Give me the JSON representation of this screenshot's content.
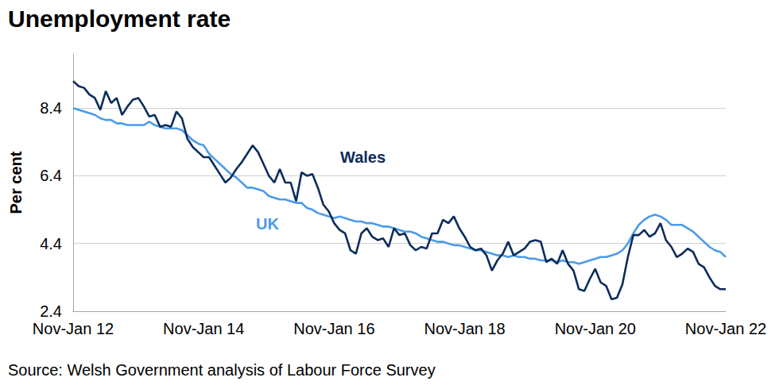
{
  "chart_data": {
    "type": "line",
    "title": "Unemployment rate",
    "y_label": "Per cent",
    "source": "Source: Welsh Government analysis of Labour Force Survey",
    "categories": [
      "Nov-Jan 12",
      null,
      null,
      null,
      null,
      null,
      null,
      null,
      null,
      null,
      null,
      null,
      null,
      null,
      null,
      null,
      null,
      null,
      null,
      null,
      null,
      null,
      null,
      null,
      "Nov-Jan 14",
      null,
      null,
      null,
      null,
      null,
      null,
      null,
      null,
      null,
      null,
      null,
      null,
      null,
      null,
      null,
      null,
      null,
      null,
      null,
      null,
      null,
      null,
      null,
      "Nov-Jan 16",
      null,
      null,
      null,
      null,
      null,
      null,
      null,
      null,
      null,
      null,
      null,
      null,
      null,
      null,
      null,
      null,
      null,
      null,
      null,
      null,
      null,
      null,
      null,
      "Nov-Jan 18",
      null,
      null,
      null,
      null,
      null,
      null,
      null,
      null,
      null,
      null,
      null,
      null,
      null,
      null,
      null,
      null,
      null,
      null,
      null,
      null,
      null,
      null,
      null,
      "Nov-Jan 20",
      null,
      null,
      null,
      null,
      null,
      null,
      null,
      null,
      null,
      null,
      null,
      null,
      null,
      null,
      null,
      null,
      null,
      null,
      null,
      null,
      null,
      null,
      null,
      "Nov-Jan 22"
    ],
    "series": [
      {
        "name": "Wales",
        "color": "#0c2c5c",
        "values": [
          9.2,
          9.05,
          9.0,
          8.8,
          8.7,
          8.35,
          8.9,
          8.55,
          8.7,
          8.2,
          8.45,
          8.65,
          8.7,
          8.45,
          8.15,
          8.2,
          7.85,
          7.9,
          7.85,
          8.3,
          8.1,
          7.5,
          7.25,
          7.1,
          6.95,
          6.95,
          6.7,
          6.45,
          6.2,
          6.35,
          6.6,
          6.8,
          7.05,
          7.3,
          7.1,
          6.75,
          6.4,
          6.2,
          6.6,
          6.2,
          6.2,
          5.65,
          6.5,
          6.4,
          6.45,
          6.05,
          5.55,
          5.35,
          5.0,
          4.8,
          4.7,
          4.2,
          4.1,
          4.7,
          4.85,
          4.6,
          4.5,
          4.55,
          4.3,
          4.85,
          4.65,
          4.7,
          4.35,
          4.2,
          4.3,
          4.25,
          4.7,
          4.7,
          5.1,
          5.0,
          5.2,
          4.85,
          4.6,
          4.3,
          4.2,
          4.25,
          4.05,
          3.6,
          3.9,
          4.1,
          4.45,
          4.05,
          4.15,
          4.25,
          4.45,
          4.5,
          4.45,
          3.85,
          3.95,
          3.8,
          4.2,
          3.8,
          3.6,
          3.05,
          3.0,
          3.35,
          3.65,
          3.25,
          3.15,
          2.75,
          2.8,
          3.2,
          4.0,
          4.65,
          4.65,
          4.8,
          4.6,
          4.7,
          5.0,
          4.5,
          4.3,
          4.0,
          4.1,
          4.25,
          4.15,
          3.8,
          3.7,
          3.4,
          3.15,
          3.05,
          3.05
        ]
      },
      {
        "name": "UK",
        "color": "#4c9be8",
        "values": [
          8.4,
          8.35,
          8.3,
          8.25,
          8.2,
          8.1,
          8.05,
          8.05,
          7.95,
          7.95,
          7.9,
          7.9,
          7.9,
          7.9,
          8.0,
          7.9,
          7.85,
          7.8,
          7.8,
          7.8,
          7.75,
          7.6,
          7.45,
          7.35,
          7.3,
          7.05,
          6.9,
          6.75,
          6.6,
          6.45,
          6.35,
          6.2,
          6.05,
          6.05,
          6.0,
          5.95,
          5.8,
          5.75,
          5.7,
          5.7,
          5.65,
          5.6,
          5.6,
          5.45,
          5.4,
          5.3,
          5.25,
          5.2,
          5.15,
          5.2,
          5.15,
          5.1,
          5.05,
          5.05,
          5.0,
          5.0,
          4.95,
          4.9,
          4.9,
          4.85,
          4.8,
          4.75,
          4.75,
          4.7,
          4.6,
          4.55,
          4.5,
          4.45,
          4.45,
          4.4,
          4.35,
          4.35,
          4.3,
          4.25,
          4.2,
          4.2,
          4.15,
          4.1,
          4.05,
          4.05,
          4.0,
          4.05,
          4.0,
          4.0,
          3.95,
          3.95,
          3.9,
          3.9,
          3.9,
          3.85,
          3.9,
          3.85,
          3.85,
          3.8,
          3.85,
          3.9,
          3.95,
          4.0,
          4.0,
          4.05,
          4.1,
          4.2,
          4.4,
          4.7,
          4.95,
          5.1,
          5.2,
          5.25,
          5.2,
          5.1,
          4.95,
          4.95,
          4.95,
          4.85,
          4.75,
          4.6,
          4.45,
          4.3,
          4.2,
          4.15,
          4.0
        ]
      }
    ],
    "ylim": [
      2.4,
      10
    ],
    "yticks": [
      2.4,
      4.4,
      6.4,
      8.4
    ],
    "grid": true
  }
}
